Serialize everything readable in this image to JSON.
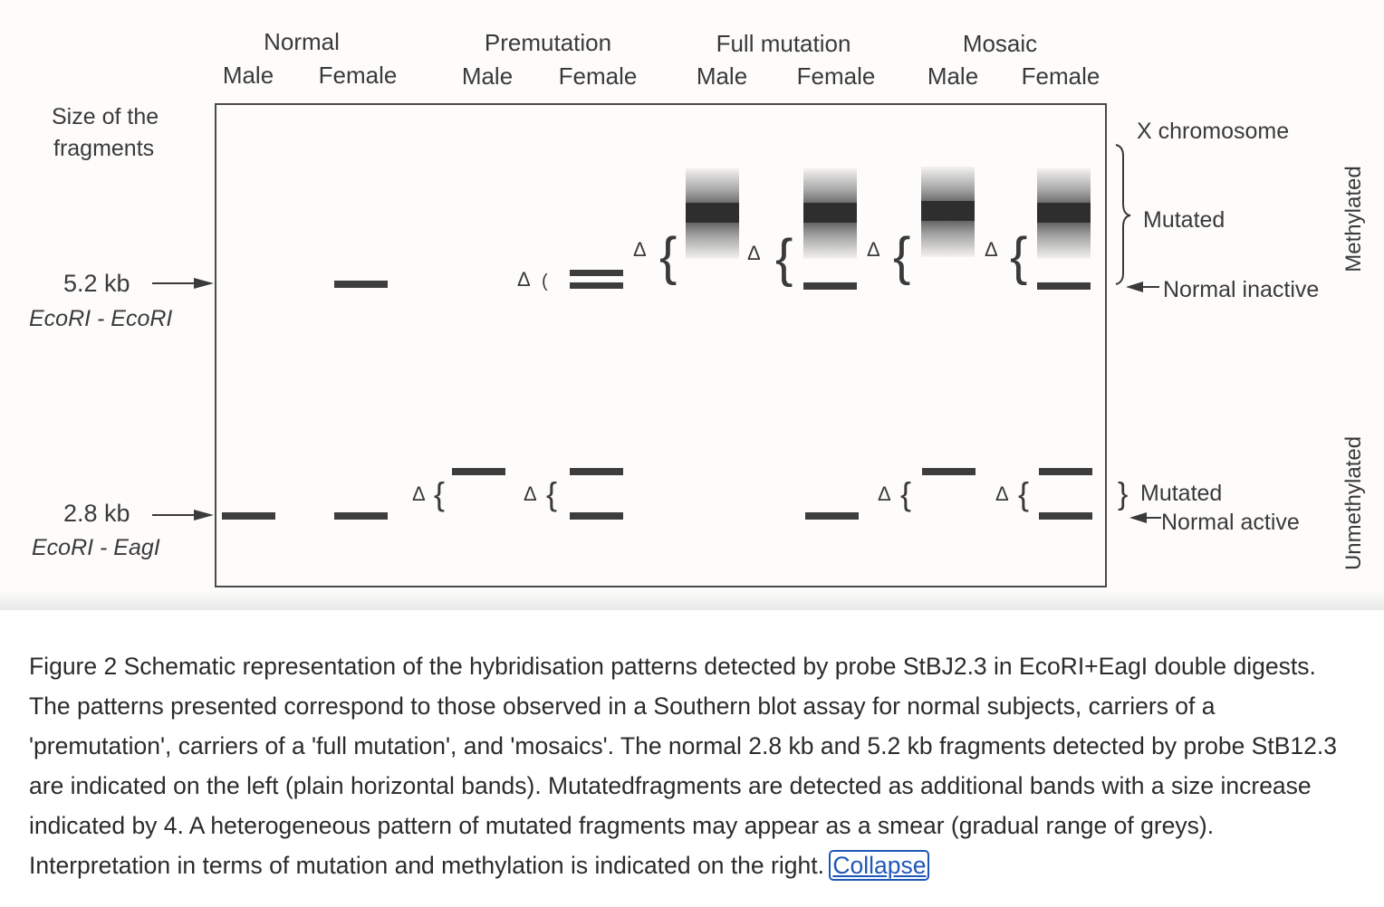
{
  "figure": {
    "groups": [
      {
        "label": "Normal",
        "sub": [
          "Male",
          "Female"
        ]
      },
      {
        "label": "Premutation",
        "sub": [
          "Male",
          "Female"
        ]
      },
      {
        "label": "Full mutation",
        "sub": [
          "Male",
          "Female"
        ]
      },
      {
        "label": "Mosaic",
        "sub": [
          "Male",
          "Female"
        ]
      }
    ],
    "size_label_line1": "Size of the",
    "size_label_line2": "fragments",
    "band_52_size": "5.2 kb",
    "band_52_enzymes": "EcoRI - EcoRI",
    "band_28_size": "2.8 kb",
    "band_28_enzymes": "EcoRI - EagI",
    "delta_symbol": "Δ",
    "right_x_chromosome": "X chromosome",
    "right_mutated_top": "Mutated",
    "right_normal_inactive": "Normal inactive",
    "right_mutated_bottom": "Mutated",
    "right_normal_active": "Normal active",
    "side_methylated": "Methylated",
    "side_unmethylated": "Unmethylated"
  },
  "caption": {
    "text": "Figure 2 Schematic representation of the hybridisation patterns detected by probe StBJ2.3 in EcoRI+EagI double digests. The patterns presented correspond to those observed in a Southern blot assay for normal subjects, carriers of a 'premutation', carriers of a 'full mutation', and 'mosaics'. The normal 2.8 kb and 5.2 kb fragments detected by probe StB12.3 are indicated on the left (plain horizontal bands). Mutatedfragments are detected as additional bands with a size increase indicated by 4. A heterogeneous pattern of mutated fragments may appear as a smear (gradual range of greys). Interpretation in terms of mutation and methylation is indicated on the right.",
    "collapse_label": "Collapse"
  },
  "colors": {
    "band": "#3d3d3d",
    "text": "#2b2b2b",
    "link": "#1f57b8"
  }
}
